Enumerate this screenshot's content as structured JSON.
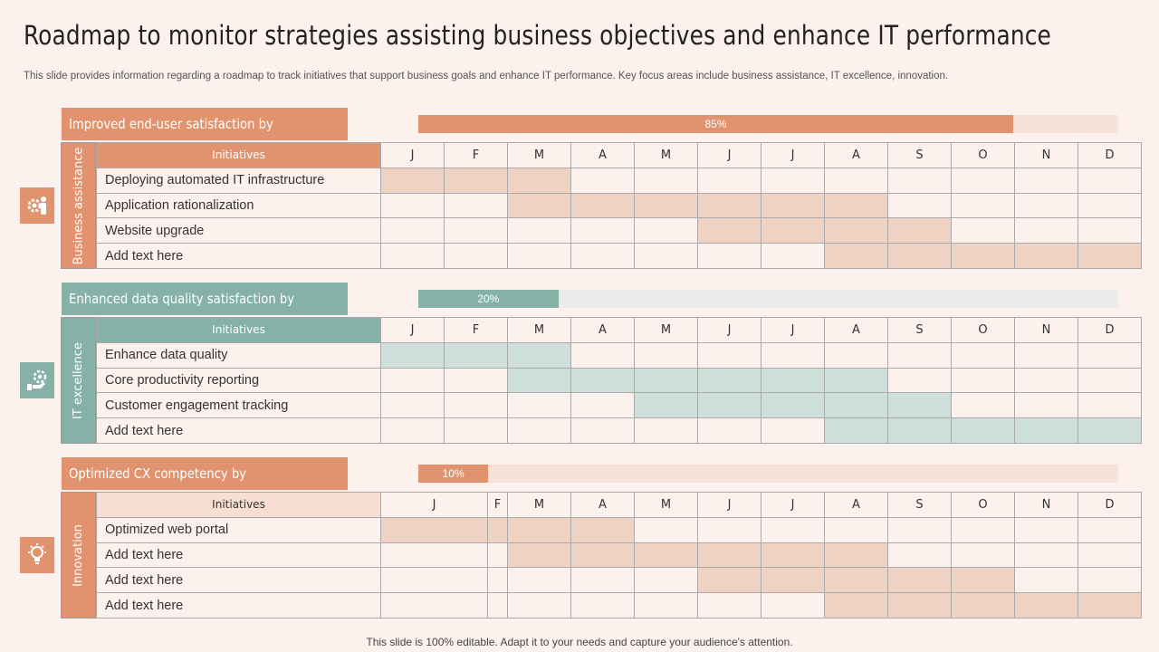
{
  "title": "Roadmap to monitor strategies assisting business objectives and enhance IT performance",
  "subtitle": "This slide provides information regarding a roadmap to track initiatives that support business goals and enhance IT performance. Key focus areas include business assistance, IT excellence, innovation.",
  "footer": "This slide is 100% editable. Adapt it to your needs and capture your audience's attention.",
  "header_col": "Initiatives",
  "months": [
    "J",
    "F",
    "M",
    "A",
    "M",
    "J",
    "J",
    "A",
    "S",
    "O",
    "N",
    "D"
  ],
  "colors": {
    "orange": "#E0936E",
    "orange_light": "#F0D2C3",
    "orange_track": "#F5E3DA",
    "teal": "#85B1A6",
    "teal_light": "#CFE0DC",
    "teal_track": "#E9ECEB",
    "cell_bg": "#FCF1EC",
    "init_header_light": "#F6DED3"
  },
  "sections": [
    {
      "label": "Improved end-user satisfaction by",
      "progress_value": 85,
      "progress_text": "85%",
      "vertical_label": "Business assistance",
      "icon": "gear-person-icon",
      "theme": "orange",
      "rows": [
        {
          "name": "Deploying automated IT infrastructure",
          "span": [
            0,
            3
          ]
        },
        {
          "name": "Application rationalization",
          "span": [
            2,
            8
          ]
        },
        {
          "name": "Website upgrade",
          "span": [
            5,
            9
          ]
        },
        {
          "name": "Add text here",
          "span": [
            7,
            12
          ]
        }
      ]
    },
    {
      "label": "Enhanced data quality satisfaction by",
      "progress_value": 20,
      "progress_text": "20%",
      "vertical_label": "IT excellence",
      "icon": "hand-gear-icon",
      "theme": "teal",
      "rows": [
        {
          "name": "Enhance data quality",
          "span": [
            0,
            3
          ]
        },
        {
          "name": "Core productivity reporting",
          "span": [
            2,
            8
          ]
        },
        {
          "name": "Customer engagement tracking",
          "span": [
            4,
            9
          ]
        },
        {
          "name": "Add text here",
          "span": [
            7,
            12
          ]
        }
      ]
    },
    {
      "label": "Optimized CX competency by",
      "progress_value": 10,
      "progress_text": "10%",
      "vertical_label": "Innovation",
      "icon": "lightbulb-gear-icon",
      "theme": "orange",
      "rows": [
        {
          "name": "Optimized web portal",
          "span": [
            0,
            4
          ]
        },
        {
          "name": "Add text here",
          "span": [
            2,
            8
          ]
        },
        {
          "name": "Add text here",
          "span": [
            5,
            10
          ]
        },
        {
          "name": "Add text here",
          "span": [
            7,
            12
          ]
        }
      ]
    }
  ]
}
